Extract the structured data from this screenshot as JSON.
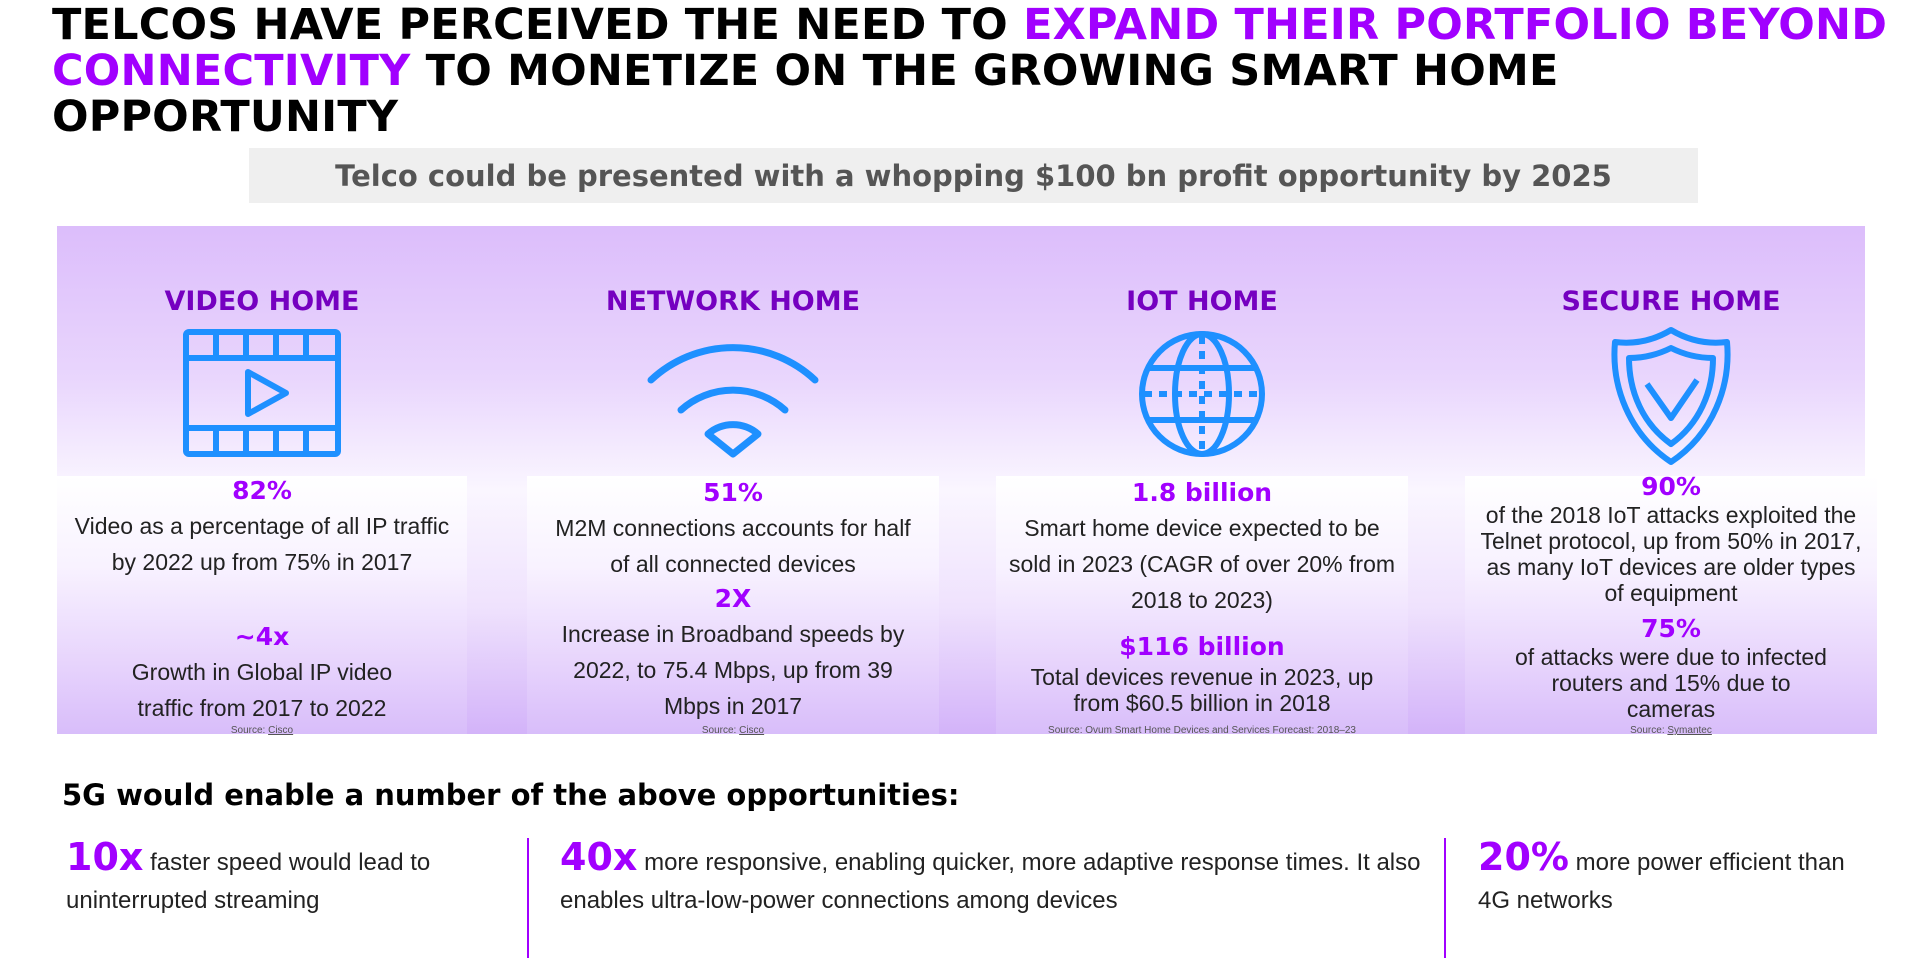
{
  "title": {
    "part1": "TELCOS HAVE PERCEIVED THE NEED TO ",
    "highlight": "EXPAND THEIR PORTFOLIO BEYOND CONNECTIVITY",
    "part2": " TO MONETIZE ON THE GROWING SMART HOME OPPORTUNITY"
  },
  "subtitle": "Telco could be presented with a whopping $100 bn profit opportunity by 2025",
  "accent_color": "#a100ff",
  "heading_color": "#7500c0",
  "icon_color": "#1e90ff",
  "columns": [
    {
      "heading": "VIDEO HOME",
      "icon": "video-film-icon",
      "stat1": "82%",
      "desc1": "Video as a percentage of all IP traffic by 2022 up from 75% in 2017",
      "stat2": "~4x",
      "desc2": "Growth in Global IP video traffic from 2017 to 2022",
      "source_prefix": "Source: ",
      "source_name": "Cisco"
    },
    {
      "heading": "NETWORK HOME",
      "icon": "wifi-icon",
      "stat1": "51%",
      "desc1": "M2M connections accounts for half of all connected devices",
      "stat2": "2X",
      "desc2": "Increase in Broadband speeds by 2022, to 75.4 Mbps, up from 39 Mbps in 2017",
      "source_prefix": "Source: ",
      "source_name": "Cisco"
    },
    {
      "heading": "IOT HOME",
      "icon": "globe-network-icon",
      "stat1": "1.8 billion",
      "desc1": "Smart home device  expected to be sold in 2023 (CAGR of over 20% from 2018 to 2023)",
      "stat2": "$116 billion",
      "desc2": "Total devices revenue in 2023, up from  $60.5 billion in 2018",
      "source_prefix": "Source: ",
      "source_name": "Ovum Smart Home Devices and Services Forecast: 2018–23"
    },
    {
      "heading": "SECURE HOME",
      "icon": "shield-check-icon",
      "stat1": "90%",
      "desc1": "of the 2018 IoT attacks exploited the Telnet protocol, up from 50% in 2017, as many IoT devices are older types of equipment",
      "stat2": "75%",
      "desc2": "of attacks were due to infected routers and 15% due to cameras",
      "source_prefix": "Source: ",
      "source_name": "Symantec"
    }
  ],
  "fiveg": {
    "title": "5G would enable a number of the above opportunities:",
    "facts": [
      {
        "big": "10x",
        "text": " faster speed would lead to uninterrupted streaming"
      },
      {
        "big": "40x",
        "text": " more responsive, enabling quicker, more adaptive response times. It also enables ultra-low-power connections among devices"
      },
      {
        "big": "20%",
        "text": " more power efficient than 4G networks"
      }
    ]
  }
}
